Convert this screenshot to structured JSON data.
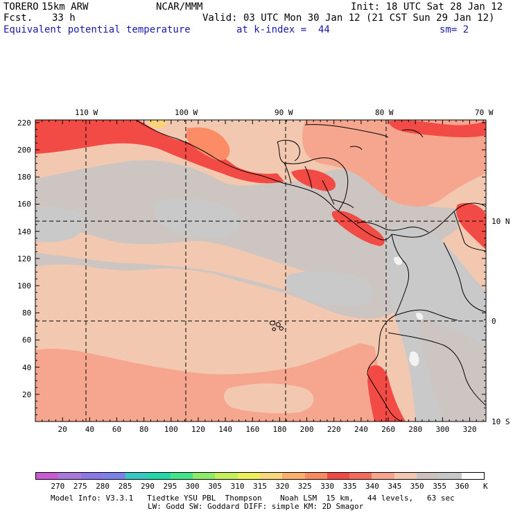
{
  "header": {
    "model": "TORERO",
    "resolution": "15km ARW",
    "org": "NCAR/MMM",
    "init": "Init: 18 UTC Sat 28 Jan 12",
    "fcst_label": "Fcst.",
    "fcst_value": "33 h",
    "valid": "Valid: 03 UTC Mon 30 Jan 12 (21 CST Sun 29 Jan 12)",
    "field": "Equivalent potential temperature",
    "level": "at k-index =  44",
    "smoothing": "sm= 2"
  },
  "map": {
    "top_lon_labels": [
      "110 W",
      "100 W",
      "90 W",
      "80 W",
      "70 W"
    ],
    "right_lat_labels": [
      "10 N",
      "0",
      "10 S"
    ],
    "left_ticks": [
      "220",
      "200",
      "180",
      "160",
      "140",
      "120",
      "100",
      "80",
      "60",
      "40",
      "20"
    ],
    "bottom_ticks": [
      "20",
      "40",
      "60",
      "80",
      "100",
      "120",
      "140",
      "160",
      "180",
      "200",
      "220",
      "240",
      "260",
      "280",
      "300",
      "320"
    ],
    "field_colors": {
      "t325": "#fb8c66",
      "t330": "#f24b45",
      "t335": "#fc6f5a",
      "t340": "#f6a68f",
      "t345": "#f2c8b0",
      "t350": "#cdc5c2",
      "t355": "#c9c9c9",
      "t360": "#f2f2f2",
      "t320": "#fcd27a"
    },
    "coast_color": "#000000"
  },
  "legend": {
    "labels": [
      "270",
      "275",
      "280",
      "285",
      "290",
      "295",
      "300",
      "305",
      "310",
      "315",
      "320",
      "325",
      "330",
      "335",
      "340",
      "345",
      "350",
      "355",
      "360"
    ],
    "unit": "K",
    "colors": [
      "#c85ad2",
      "#a878dc",
      "#8a78e6",
      "#7c82ea",
      "#38c8c4",
      "#20d8a8",
      "#44e488",
      "#8cec6a",
      "#c4f05e",
      "#eef05a",
      "#fcd87c",
      "#fcb06c",
      "#f88a5e",
      "#f04a44",
      "#f26c5c",
      "#f7a48e",
      "#f2c8b0",
      "#cdc2bd",
      "#c8c8c8",
      "#ffffff"
    ]
  },
  "footer": {
    "line1": "Model Info: V3.3.1   Tiedtke YSU PBL  Thompson    Noah LSM  15 km,   44 levels,   63 sec",
    "line2": "LW: Godd SW: Goddard DIFF: simple KM: 2D Smagor"
  }
}
